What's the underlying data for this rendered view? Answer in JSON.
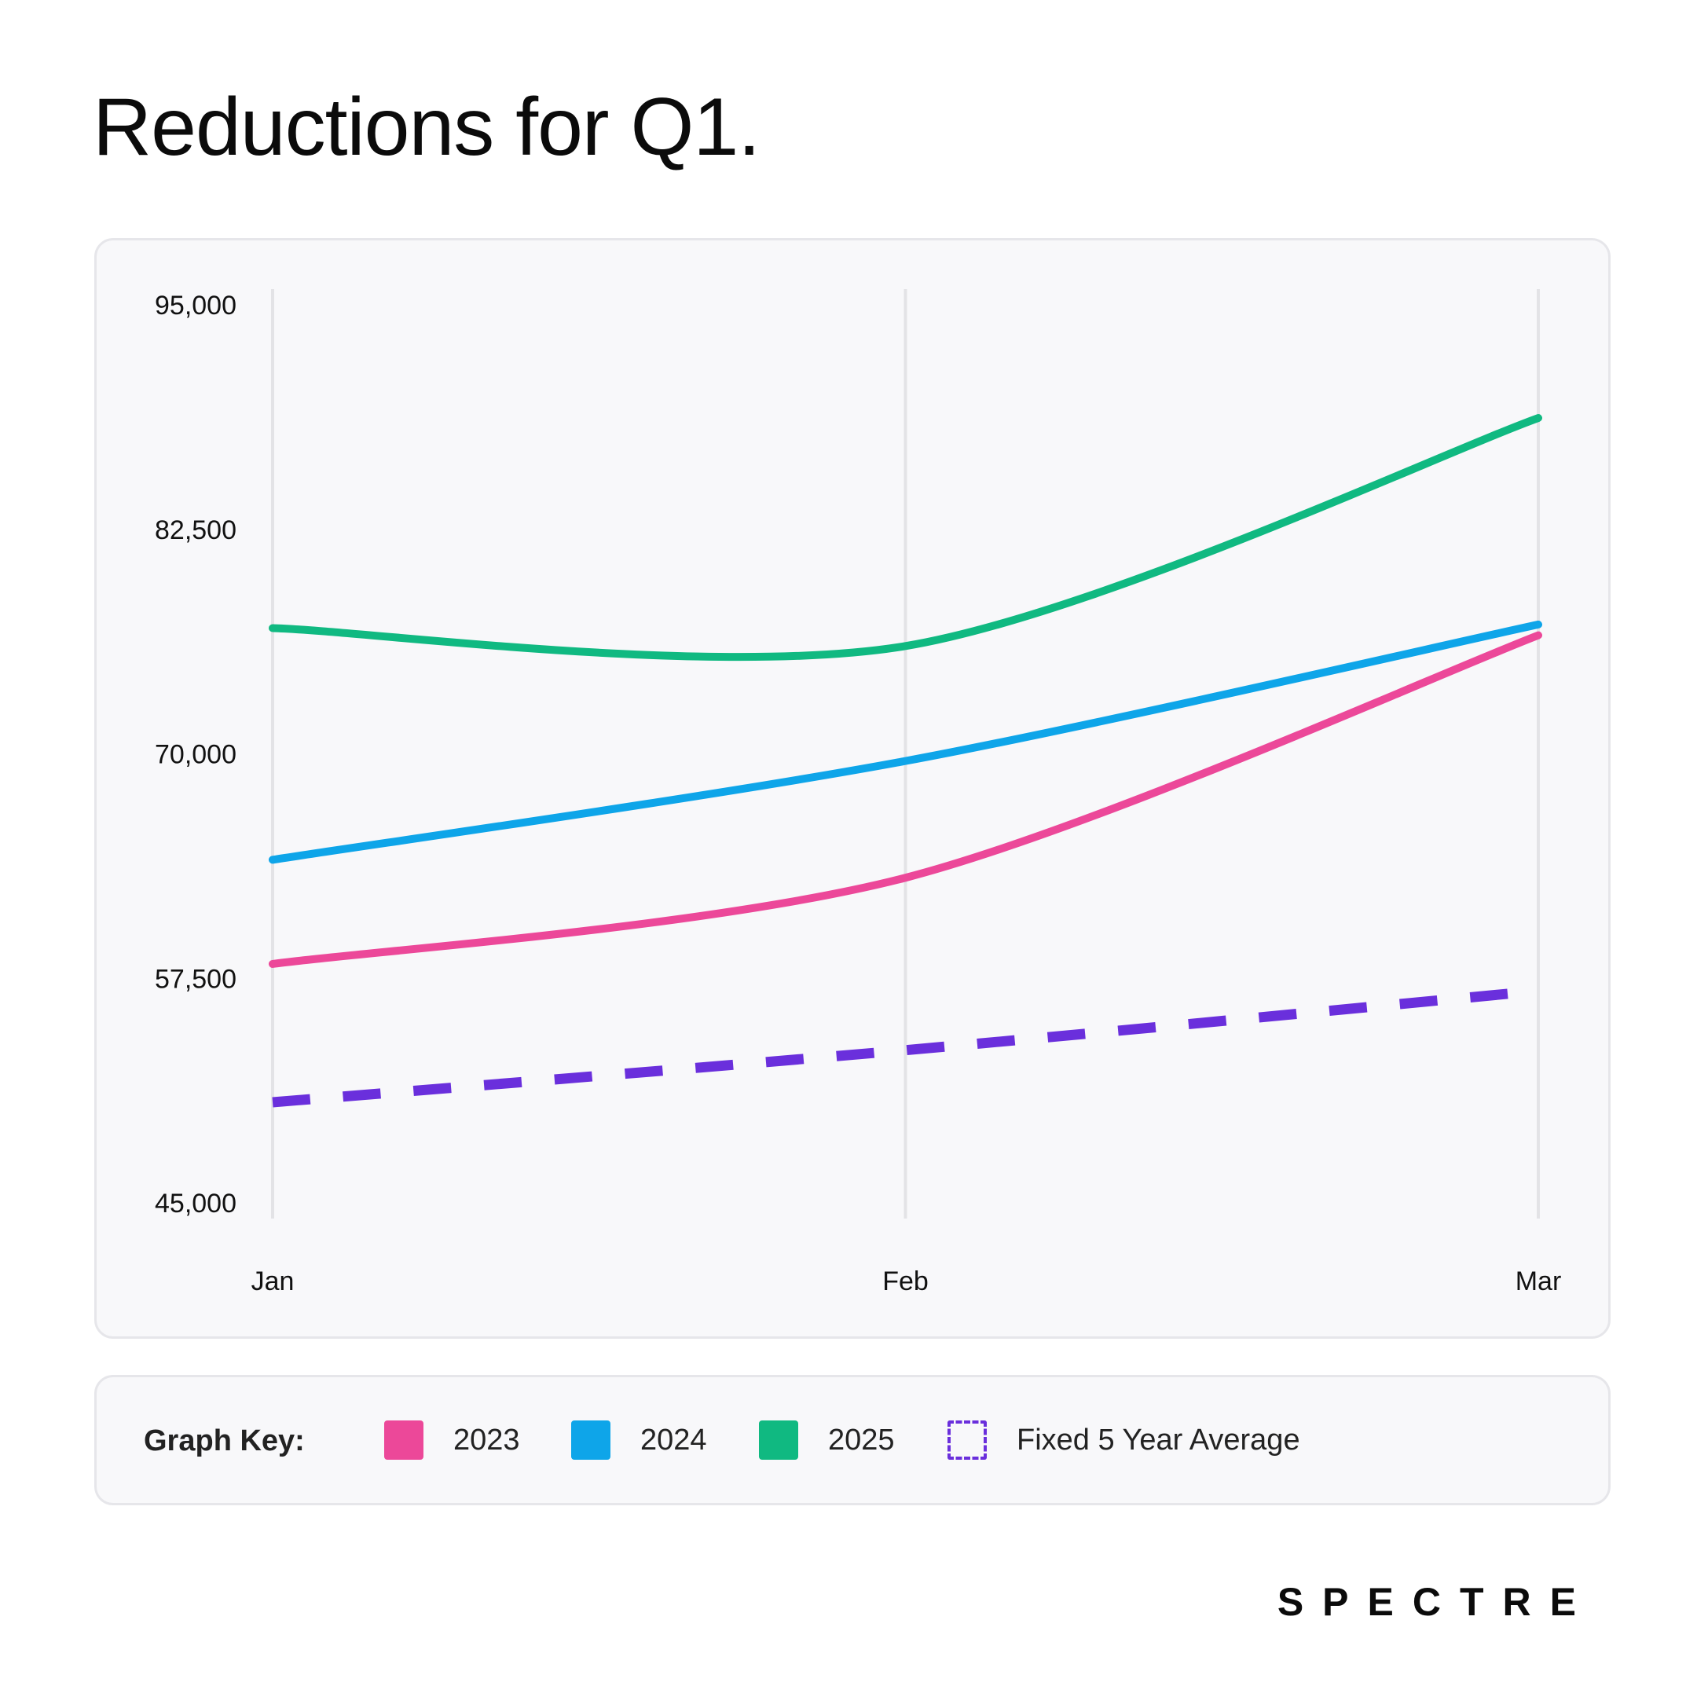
{
  "title": "Reductions for Q1.",
  "brand": "SPECTRE",
  "legend": {
    "title": "Graph Key:",
    "items": [
      {
        "label": "2023",
        "color": "#ec4899",
        "style": "solid"
      },
      {
        "label": "2024",
        "color": "#0ea5e9",
        "style": "solid"
      },
      {
        "label": "2025",
        "color": "#10b981",
        "style": "solid"
      },
      {
        "label": "Fixed 5 Year Average",
        "color": "#6a2fdc",
        "style": "dashed"
      }
    ]
  },
  "chart_data": {
    "type": "line",
    "categories": [
      "Jan",
      "Feb",
      "Mar"
    ],
    "y_ticks": [
      "95,000",
      "82,500",
      "70,000",
      "57,500",
      "45,000"
    ],
    "ylim": [
      45000,
      95000
    ],
    "grid": "vertical",
    "legend_position": "bottom",
    "series": [
      {
        "name": "2023",
        "values": [
          58300,
          63100,
          76600
        ],
        "color": "#ec4899",
        "dashed": false
      },
      {
        "name": "2024",
        "values": [
          64100,
          69600,
          77200
        ],
        "color": "#0ea5e9",
        "dashed": false
      },
      {
        "name": "2025",
        "values": [
          77000,
          76000,
          88700
        ],
        "color": "#10b981",
        "dashed": false
      },
      {
        "name": "Fixed 5 Year Average",
        "values": [
          50600,
          53500,
          56800
        ],
        "color": "#6a2fdc",
        "dashed": true
      }
    ]
  }
}
